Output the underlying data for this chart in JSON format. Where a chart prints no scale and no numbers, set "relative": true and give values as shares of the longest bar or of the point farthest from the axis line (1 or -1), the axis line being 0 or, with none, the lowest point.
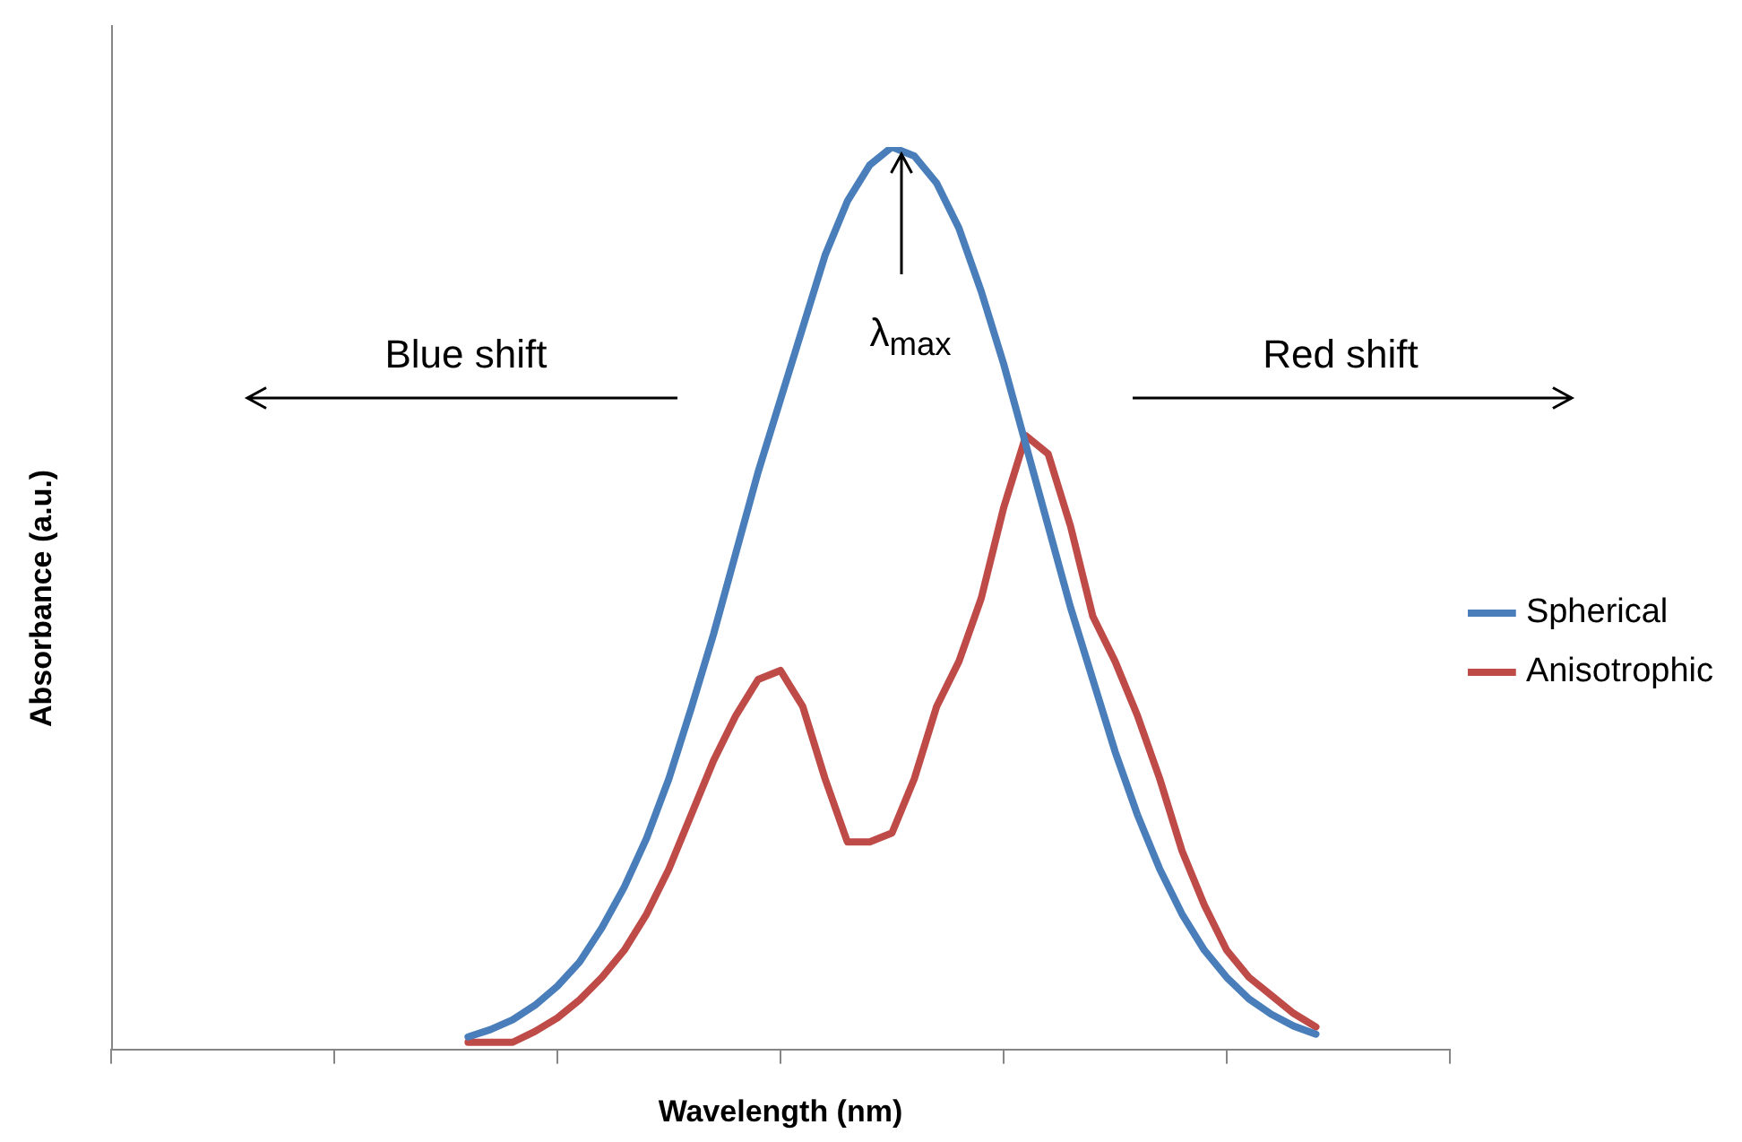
{
  "chart_data": {
    "type": "line",
    "relative": true,
    "xlabel": "Wavelength (nm)",
    "ylabel": "Absorbance (a.u.)",
    "legend": "right",
    "marker": "none",
    "grid": false,
    "categories": [
      null,
      null,
      null,
      null,
      null,
      null,
      null,
      null,
      null,
      null,
      null,
      null,
      null,
      null,
      null,
      null,
      null,
      null,
      null,
      null,
      null,
      null,
      null,
      null,
      null,
      null,
      null,
      null,
      null,
      null,
      null,
      null,
      null,
      null,
      null,
      null,
      null,
      null,
      null,
      null,
      null,
      null,
      null,
      null,
      null,
      null,
      null,
      null,
      null,
      null,
      null,
      null,
      null,
      null,
      null,
      null,
      null,
      null,
      null,
      null,
      null
    ],
    "series": [
      {
        "name": "Spherical",
        "color": "#4a7ebb",
        "values": [
          null,
          null,
          null,
          null,
          null,
          null,
          null,
          null,
          null,
          null,
          null,
          null,
          null,
          null,
          null,
          null,
          0.014,
          0.022,
          0.033,
          0.049,
          0.07,
          0.097,
          0.135,
          0.18,
          0.234,
          0.3,
          0.378,
          0.46,
          0.55,
          0.64,
          0.72,
          0.8,
          0.88,
          0.94,
          0.98,
          1,
          0.99,
          0.96,
          0.91,
          0.84,
          0.76,
          0.67,
          0.58,
          0.49,
          0.41,
          0.33,
          0.26,
          0.2,
          0.15,
          0.11,
          0.08,
          0.056,
          0.039,
          0.026,
          0.017,
          null,
          null,
          null,
          null,
          null,
          null
        ]
      },
      {
        "name": "Anisotrophic",
        "color": "#be4b48",
        "values": [
          null,
          null,
          null,
          null,
          null,
          null,
          null,
          null,
          null,
          null,
          null,
          null,
          null,
          null,
          null,
          null,
          0.008,
          0.008,
          0.008,
          0.02,
          0.035,
          0.055,
          0.08,
          0.11,
          0.15,
          0.2,
          0.26,
          0.32,
          0.37,
          0.41,
          0.42,
          0.38,
          0.3,
          0.23,
          0.23,
          0.24,
          0.3,
          0.38,
          0.43,
          0.5,
          0.6,
          0.68,
          0.66,
          0.58,
          0.48,
          0.43,
          0.37,
          0.3,
          0.22,
          0.16,
          0.11,
          0.08,
          0.06,
          0.04,
          0.025,
          null,
          null,
          null,
          null,
          null,
          null
        ]
      }
    ],
    "annotations": [
      "Blue shift",
      "Red shift",
      "λ$_{max}$"
    ]
  }
}
